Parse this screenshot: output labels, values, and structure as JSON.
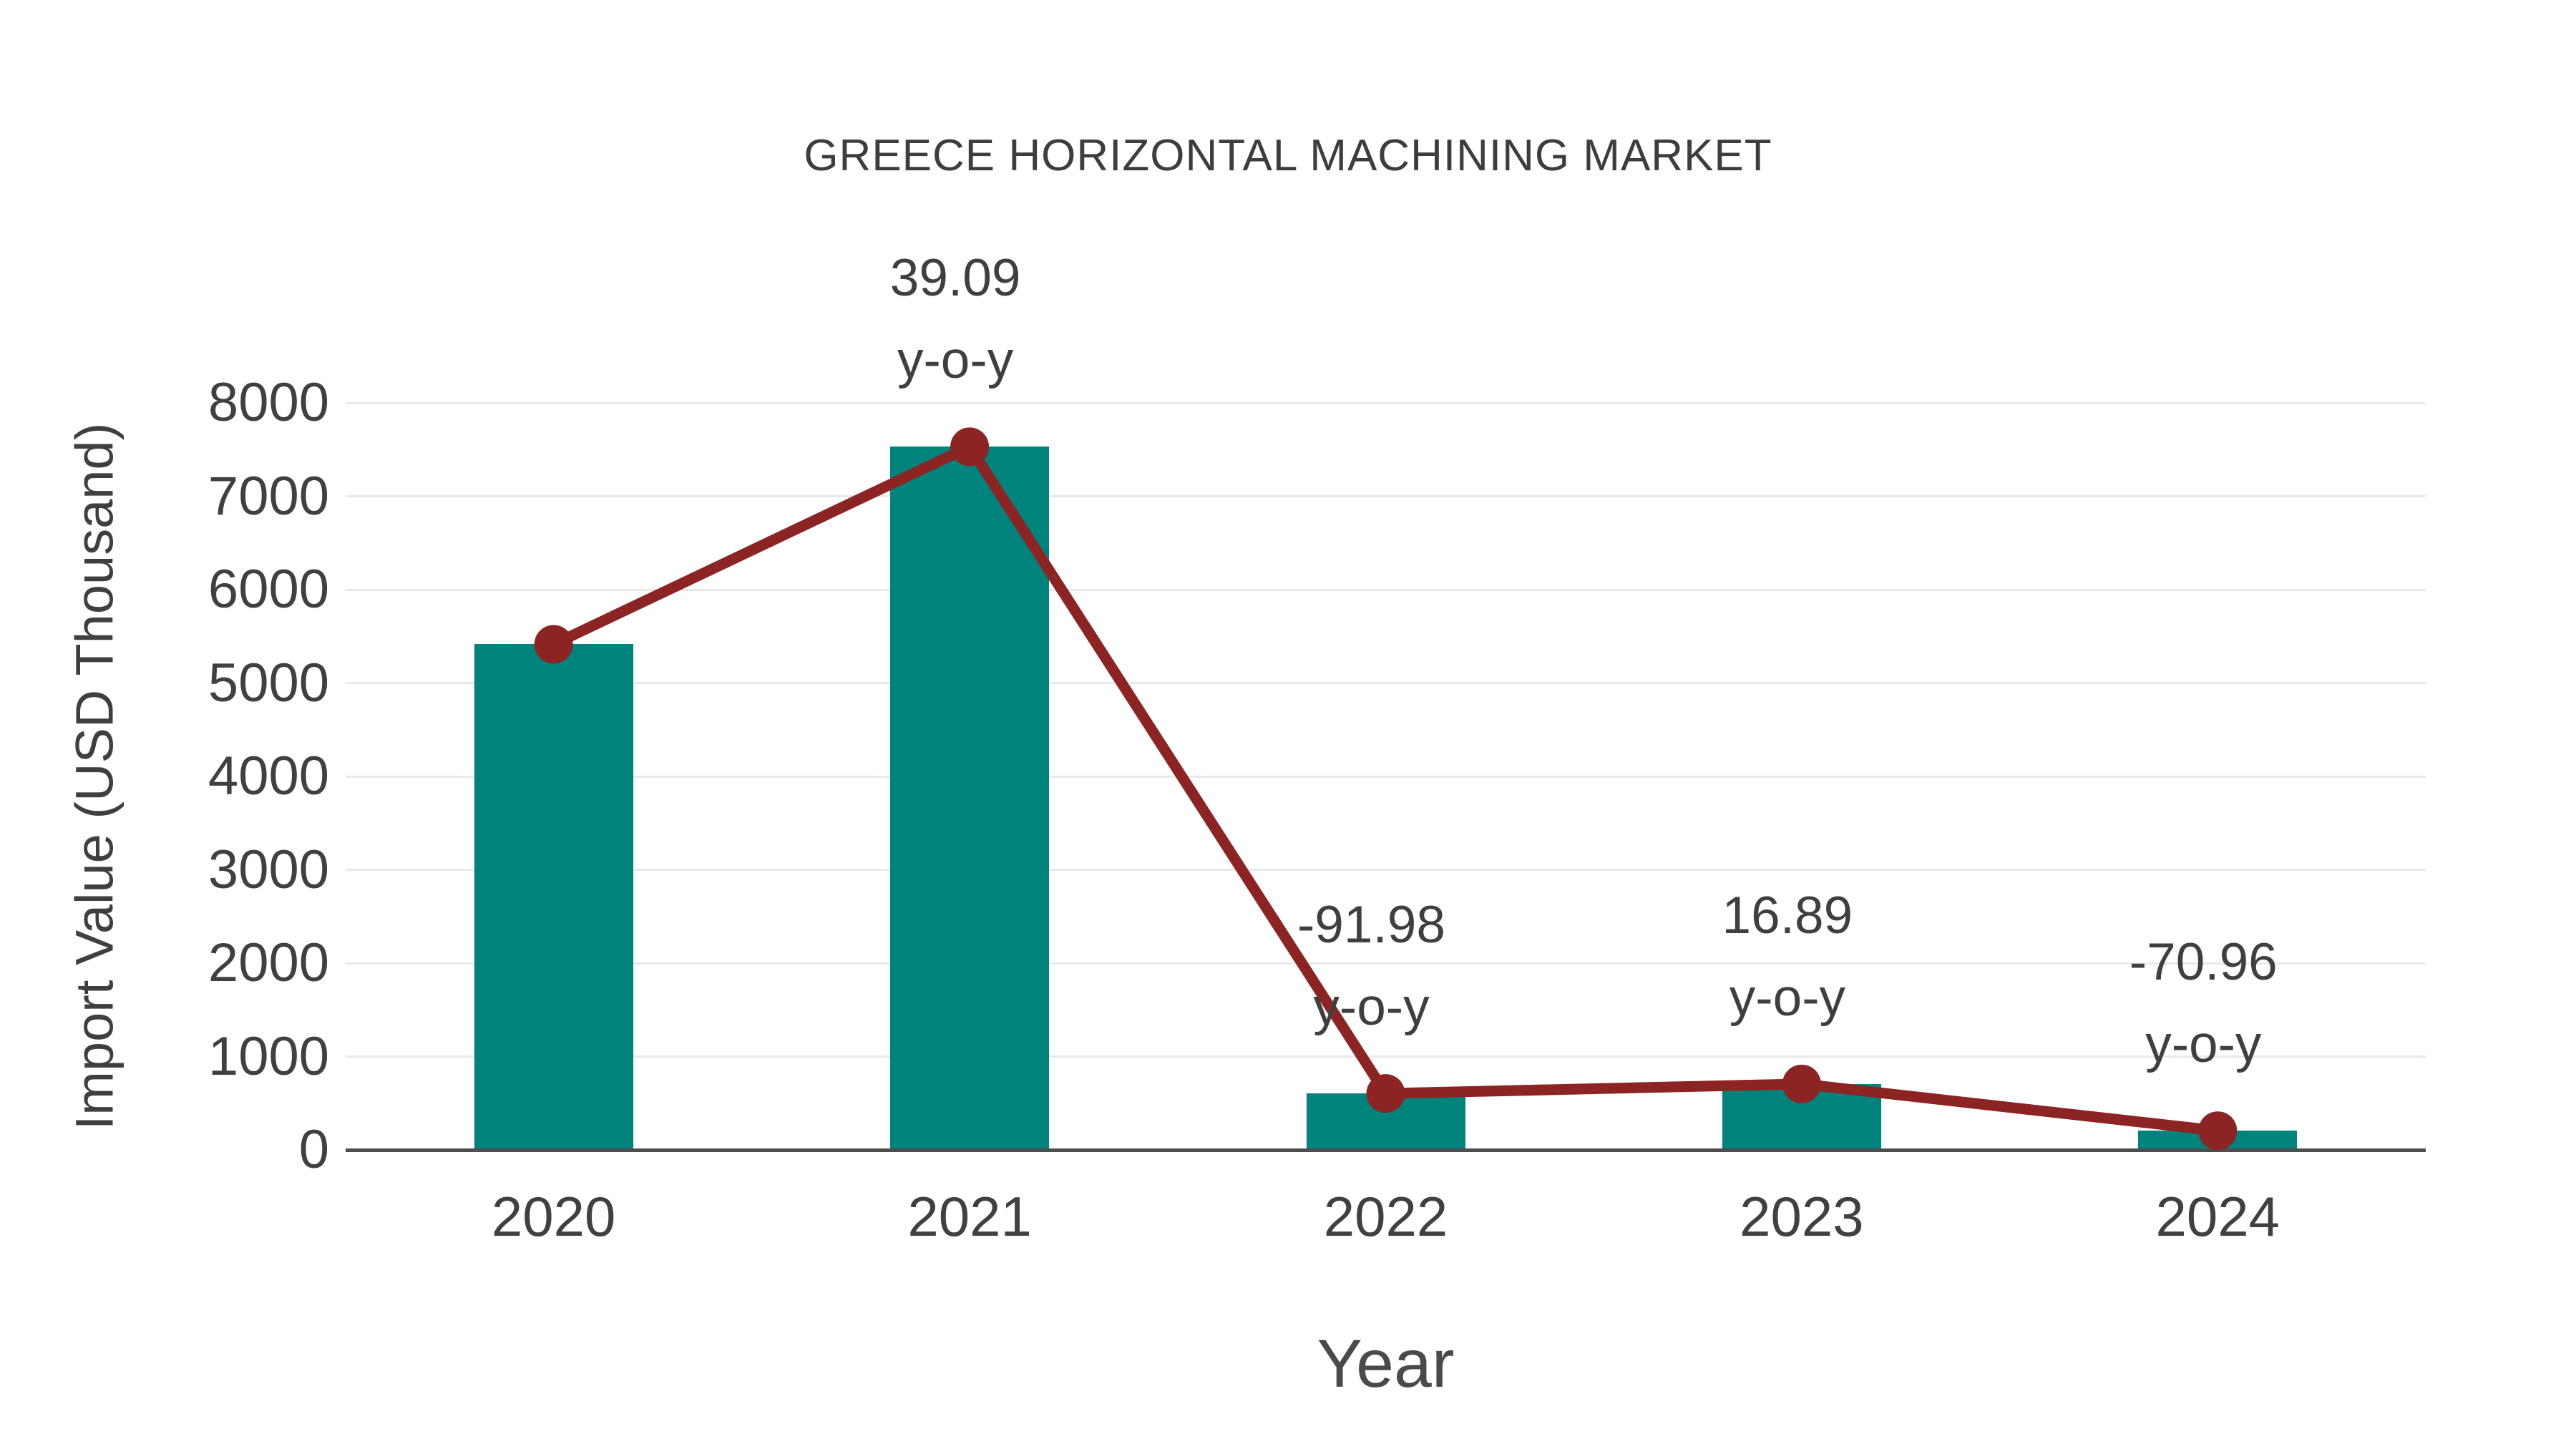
{
  "chart_data": {
    "type": "bar",
    "title": "GREECE HORIZONTAL MACHINING MARKET",
    "xlabel": "Year",
    "ylabel": "Import Value (USD Thousand)",
    "categories": [
      "2020",
      "2021",
      "2022",
      "2023",
      "2024"
    ],
    "series": [
      {
        "name": "Import Value (USD Thousand)",
        "type": "bar",
        "color": "#00837D",
        "values": [
          5414,
          7530,
          604,
          706,
          205
        ]
      },
      {
        "name": "Import Value trend (y-o-y)",
        "type": "line",
        "color": "#8B2423",
        "values": [
          5414,
          7530,
          604,
          706,
          205
        ]
      }
    ],
    "point_labels": [
      {
        "category": "2020",
        "value": "",
        "suffix": ""
      },
      {
        "category": "2021",
        "value": "39.09",
        "suffix": "y-o-y"
      },
      {
        "category": "2022",
        "value": "-91.98",
        "suffix": "y-o-y"
      },
      {
        "category": "2023",
        "value": "16.89",
        "suffix": "y-o-y"
      },
      {
        "category": "2024",
        "value": "-70.96",
        "suffix": "y-o-y"
      }
    ],
    "yticks": [
      0,
      1000,
      2000,
      3000,
      4000,
      5000,
      6000,
      7000,
      8000
    ],
    "ylim": [
      0,
      8000
    ],
    "grid": true,
    "legend_position": "none",
    "colors": {
      "bar": "#00837D",
      "line": "#8B2423",
      "text": "#3F3F3F",
      "grid": "#E9E9E9",
      "axis": "#4D4D4D",
      "background": "#FFFFFF"
    }
  }
}
